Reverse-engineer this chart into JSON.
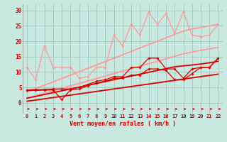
{
  "x": [
    0,
    1,
    2,
    3,
    4,
    5,
    6,
    7,
    8,
    9,
    10,
    11,
    12,
    13,
    14,
    15,
    16,
    17,
    18,
    19,
    20,
    21,
    22
  ],
  "series": [
    {
      "name": "light_jagged",
      "color": "#FF9999",
      "linewidth": 0.9,
      "markersize": 2.0,
      "y": [
        11.5,
        7.5,
        18.5,
        11.5,
        11.5,
        11.5,
        8.0,
        8.5,
        11.5,
        11.5,
        22.0,
        18.5,
        25.5,
        22.0,
        29.5,
        25.5,
        29.0,
        22.5,
        29.5,
        22.0,
        21.5,
        22.0,
        25.5
      ]
    },
    {
      "name": "trend_light_upper",
      "color": "#FF9999",
      "linewidth": 1.3,
      "markersize": 0,
      "y": [
        3.5,
        4.6,
        5.7,
        6.8,
        7.9,
        9.0,
        10.1,
        11.2,
        12.3,
        13.4,
        14.5,
        15.6,
        16.7,
        17.8,
        18.9,
        20.0,
        21.1,
        22.2,
        23.3,
        24.0,
        24.5,
        25.0,
        25.5
      ]
    },
    {
      "name": "trend_light_lower",
      "color": "#FF9999",
      "linewidth": 1.3,
      "markersize": 0,
      "y": [
        1.5,
        2.3,
        3.1,
        3.9,
        4.7,
        5.5,
        6.3,
        7.1,
        7.9,
        8.7,
        9.5,
        10.3,
        11.1,
        11.9,
        12.7,
        13.5,
        14.3,
        15.1,
        15.9,
        16.5,
        17.0,
        17.5,
        18.0
      ]
    },
    {
      "name": "dark_jagged_upper",
      "color": "#DD0000",
      "linewidth": 0.9,
      "markersize": 2.0,
      "y": [
        4.2,
        4.3,
        4.4,
        4.5,
        4.5,
        4.5,
        5.0,
        6.0,
        7.0,
        7.5,
        8.5,
        8.5,
        11.5,
        11.5,
        14.5,
        14.5,
        11.0,
        11.0,
        8.0,
        11.0,
        11.5,
        11.5,
        14.5
      ]
    },
    {
      "name": "dark_jagged_lower",
      "color": "#DD0000",
      "linewidth": 0.9,
      "markersize": 2.0,
      "y": [
        4.0,
        4.0,
        4.1,
        4.2,
        1.0,
        4.2,
        4.5,
        5.5,
        6.5,
        7.0,
        8.0,
        8.0,
        9.0,
        9.0,
        11.0,
        11.0,
        10.5,
        7.5,
        7.5,
        9.5,
        11.5,
        11.5,
        14.5
      ]
    },
    {
      "name": "trend_dark_upper",
      "color": "#DD0000",
      "linewidth": 1.3,
      "markersize": 0,
      "y": [
        1.5,
        2.1,
        2.7,
        3.3,
        3.9,
        4.5,
        5.1,
        5.7,
        6.3,
        6.9,
        7.5,
        8.1,
        8.7,
        9.3,
        9.9,
        10.5,
        11.1,
        11.7,
        12.0,
        12.3,
        12.6,
        13.0,
        13.5
      ]
    },
    {
      "name": "trend_dark_lower",
      "color": "#DD0000",
      "linewidth": 1.3,
      "markersize": 0,
      "y": [
        0.5,
        0.9,
        1.3,
        1.7,
        2.1,
        2.5,
        2.9,
        3.3,
        3.7,
        4.1,
        4.5,
        4.9,
        5.3,
        5.7,
        6.1,
        6.5,
        6.9,
        7.3,
        7.7,
        8.1,
        8.5,
        8.9,
        9.3
      ]
    }
  ],
  "xlabel": "Vent moyen/en rafales ( km/h )",
  "ylabel_ticks": [
    0,
    5,
    10,
    15,
    20,
    25,
    30
  ],
  "xlim": [
    -0.5,
    22.5
  ],
  "ylim": [
    -3.5,
    32
  ],
  "bg_color": "#C8E8E0",
  "grid_color": "#A0C8C0",
  "tick_color": "#CC0000",
  "xlabel_color": "#CC0000"
}
